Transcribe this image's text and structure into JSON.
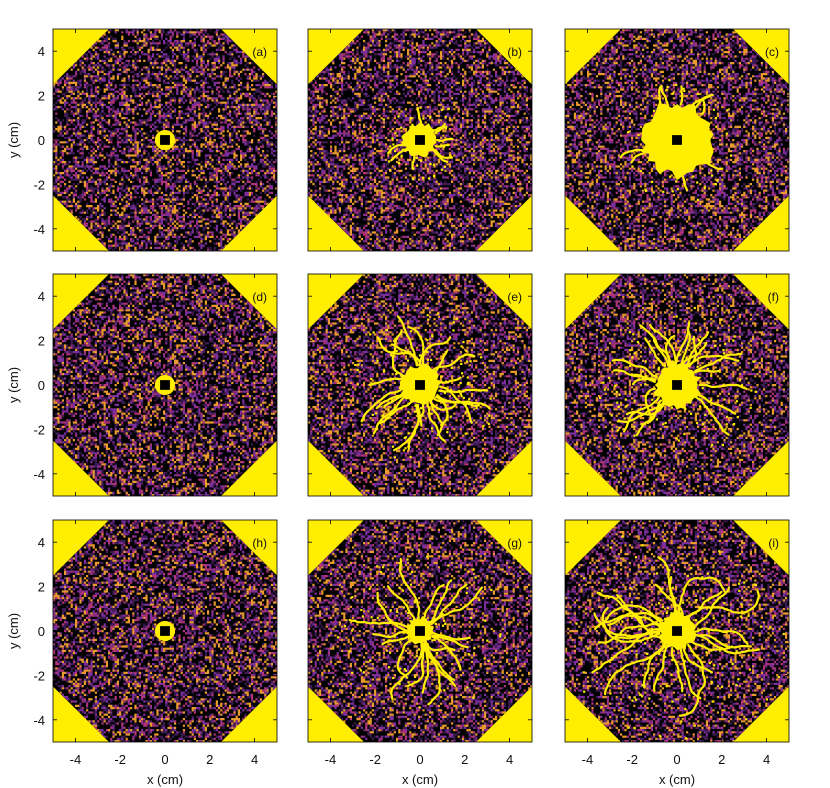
{
  "figure": {
    "background_color": "#ffffff",
    "axis_color": "#000000"
  },
  "colors": {
    "yellow": "#ffee00",
    "black": "#000000",
    "purple": "#3d1a52",
    "violet": "#7b2f9c",
    "orange": "#e89a2c",
    "magenta": "#b0347a"
  },
  "chart_data": [
    {
      "type": "heatmap",
      "panel_label": "(a)",
      "xlim": [
        -5,
        5
      ],
      "ylim": [
        -5,
        5
      ],
      "xlabel": "",
      "ylabel": "y (cm)",
      "xticks": [
        "-4",
        "-2",
        "0",
        "2",
        "4"
      ],
      "yticks": [
        "4",
        "2",
        "0",
        "-2",
        "-4"
      ],
      "show_xticks": false,
      "show_yticks": true,
      "boundary": "octagon",
      "central_region_radius_cm": 0.45,
      "center_marker_size_cm": 0.22,
      "channel_fingers": "none"
    },
    {
      "type": "heatmap",
      "panel_label": "(b)",
      "xlim": [
        -5,
        5
      ],
      "ylim": [
        -5,
        5
      ],
      "xlabel": "",
      "ylabel": "",
      "xticks": [
        "-4",
        "-2",
        "0",
        "2",
        "4"
      ],
      "yticks": [
        "4",
        "2",
        "0",
        "-2",
        "-4"
      ],
      "show_xticks": false,
      "show_yticks": false,
      "boundary": "octagon",
      "central_region_radius_cm": 0.75,
      "center_marker_size_cm": 0.22,
      "channel_fingers": "few"
    },
    {
      "type": "heatmap",
      "panel_label": "(c)",
      "xlim": [
        -5,
        5
      ],
      "ylim": [
        -5,
        5
      ],
      "xlabel": "",
      "ylabel": "",
      "xticks": [
        "-4",
        "-2",
        "0",
        "2",
        "4"
      ],
      "yticks": [
        "4",
        "2",
        "0",
        "-2",
        "-4"
      ],
      "show_xticks": false,
      "show_yticks": false,
      "boundary": "octagon",
      "central_region_radius_cm": 1.6,
      "center_marker_size_cm": 0.22,
      "channel_fingers": "few"
    },
    {
      "type": "heatmap",
      "panel_label": "(d)",
      "xlim": [
        -5,
        5
      ],
      "ylim": [
        -5,
        5
      ],
      "xlabel": "",
      "ylabel": "y (cm)",
      "xticks": [
        "-4",
        "-2",
        "0",
        "2",
        "4"
      ],
      "yticks": [
        "4",
        "2",
        "0",
        "-2",
        "-4"
      ],
      "show_xticks": false,
      "show_yticks": true,
      "boundary": "octagon",
      "central_region_radius_cm": 0.45,
      "center_marker_size_cm": 0.22,
      "channel_fingers": "none"
    },
    {
      "type": "heatmap",
      "panel_label": "(e)",
      "xlim": [
        -5,
        5
      ],
      "ylim": [
        -5,
        5
      ],
      "xlabel": "",
      "ylabel": "",
      "xticks": [
        "-4",
        "-2",
        "0",
        "2",
        "4"
      ],
      "yticks": [
        "4",
        "2",
        "0",
        "-2",
        "-4"
      ],
      "show_xticks": false,
      "show_yticks": false,
      "boundary": "octagon",
      "central_region_radius_cm": 0.9,
      "center_marker_size_cm": 0.22,
      "channel_fingers": "many"
    },
    {
      "type": "heatmap",
      "panel_label": "(f)",
      "xlim": [
        -5,
        5
      ],
      "ylim": [
        -5,
        5
      ],
      "xlabel": "",
      "ylabel": "",
      "xticks": [
        "-4",
        "-2",
        "0",
        "2",
        "4"
      ],
      "yticks": [
        "4",
        "2",
        "0",
        "-2",
        "-4"
      ],
      "show_xticks": false,
      "show_yticks": false,
      "boundary": "octagon",
      "central_region_radius_cm": 1.0,
      "center_marker_size_cm": 0.22,
      "channel_fingers": "many"
    },
    {
      "type": "heatmap",
      "panel_label": "(h)",
      "xlim": [
        -5,
        5
      ],
      "ylim": [
        -5,
        5
      ],
      "xlabel": "x (cm)",
      "ylabel": "y (cm)",
      "xticks": [
        "-4",
        "-2",
        "0",
        "2",
        "4"
      ],
      "yticks": [
        "4",
        "2",
        "0",
        "-2",
        "-4"
      ],
      "show_xticks": true,
      "show_yticks": true,
      "boundary": "octagon",
      "central_region_radius_cm": 0.45,
      "center_marker_size_cm": 0.22,
      "channel_fingers": "none"
    },
    {
      "type": "heatmap",
      "panel_label": "(g)",
      "xlim": [
        -5,
        5
      ],
      "ylim": [
        -5,
        5
      ],
      "xlabel": "x (cm)",
      "ylabel": "",
      "xticks": [
        "-4",
        "-2",
        "0",
        "2",
        "4"
      ],
      "yticks": [
        "4",
        "2",
        "0",
        "-2",
        "-4"
      ],
      "show_xticks": true,
      "show_yticks": false,
      "boundary": "octagon",
      "central_region_radius_cm": 0.6,
      "center_marker_size_cm": 0.22,
      "channel_fingers": "branching"
    },
    {
      "type": "heatmap",
      "panel_label": "(i)",
      "xlim": [
        -5,
        5
      ],
      "ylim": [
        -5,
        5
      ],
      "xlabel": "x (cm)",
      "ylabel": "",
      "xticks": [
        "-4",
        "-2",
        "0",
        "2",
        "4"
      ],
      "yticks": [
        "4",
        "2",
        "0",
        "-2",
        "-4"
      ],
      "show_xticks": true,
      "show_yticks": false,
      "boundary": "octagon",
      "central_region_radius_cm": 0.8,
      "center_marker_size_cm": 0.22,
      "channel_fingers": "long-branching"
    }
  ]
}
